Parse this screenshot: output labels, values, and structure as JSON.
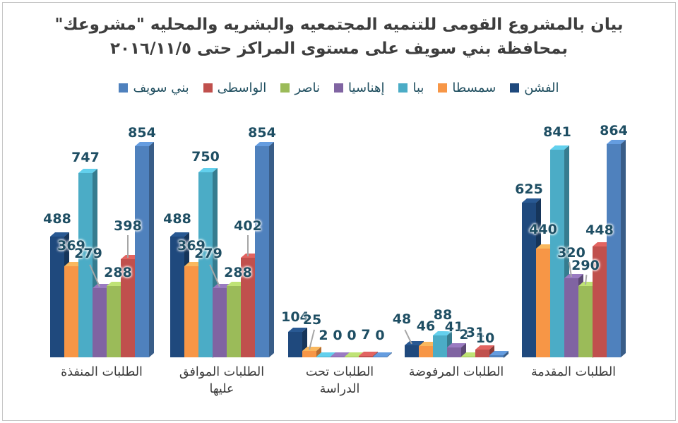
{
  "title": {
    "line1": "بيان بالمشروع القومى للتنميه المجتمعيه والبشريه والمحليه  \"مشروعك\"",
    "line2": "بمحافظة بني سويف على مستوى المراكز حتى ٢٠١٦/١١/٥"
  },
  "colors": {
    "title_text": "#3d3d3d",
    "legend_text": "#1f4e5f",
    "data_label_text": "#1e4e63",
    "category_text": "#3a3a3a",
    "leader_line": "#a6a6a6",
    "frame_border": "#c6c6c6",
    "background": "#ffffff"
  },
  "chart_data": {
    "type": "bar",
    "effect": "3d-clustered-column",
    "title": "بيان بالمشروع القومى للتنميه المجتمعيه والبشريه والمحليه \"مشروعك\" بمحافظة بني سويف على مستوى المراكز حتى ٢٠١٦/١١/٥",
    "categories": [
      "الطلبات المنفذة",
      "الطلبات الموافق عليها",
      "الطلبات تحت الدراسة",
      "الطلبات المرفوضة",
      "الطلبات المقدمة"
    ],
    "series": [
      {
        "name": "الفشن",
        "color": "#1F497D",
        "values": [
          488,
          488,
          104,
          48,
          625
        ]
      },
      {
        "name": "سمسطا",
        "color": "#F79646",
        "values": [
          369,
          369,
          25,
          46,
          440
        ]
      },
      {
        "name": "ببا",
        "color": "#4BACC6",
        "values": [
          747,
          750,
          2,
          88,
          841
        ]
      },
      {
        "name": "إهناسيا",
        "color": "#8064A2",
        "values": [
          279,
          279,
          0,
          41,
          320
        ]
      },
      {
        "name": "ناصر",
        "color": "#9BBB59",
        "values": [
          288,
          288,
          0,
          2,
          290
        ]
      },
      {
        "name": "الواسطى",
        "color": "#C0504D",
        "values": [
          398,
          402,
          7,
          31,
          448
        ]
      },
      {
        "name": "بني سويف",
        "color": "#4F81BD",
        "values": [
          854,
          854,
          0,
          10,
          864
        ]
      }
    ],
    "ylim": [
      0,
      900
    ],
    "grid": false,
    "y_axis_visible": false,
    "data_labels": true,
    "legend_position": "top",
    "legend_direction": "rtl",
    "label_layout_hints": [
      [
        [
          0,
          6,
          null
        ],
        [
          0,
          10,
          null
        ],
        [
          0,
          3,
          null
        ],
        [
          -16,
          30,
          -24
        ],
        [
          6,
          0,
          null
        ],
        [
          0,
          28,
          0
        ],
        [
          0,
          0,
          null
        ]
      ],
      [
        [
          0,
          6,
          null
        ],
        [
          0,
          10,
          null
        ],
        [
          0,
          3,
          null
        ],
        [
          -16,
          30,
          -24
        ],
        [
          6,
          0,
          null
        ],
        [
          0,
          26,
          0
        ],
        [
          0,
          0,
          null
        ]
      ],
      [
        [
          0,
          2,
          null
        ],
        [
          4,
          25,
          14
        ],
        [
          0,
          11,
          null
        ],
        [
          0,
          11,
          null
        ],
        [
          0,
          11,
          null
        ],
        [
          0,
          11,
          null
        ],
        [
          0,
          11,
          null
        ]
      ],
      [
        [
          -14,
          18,
          -26
        ],
        [
          0,
          9,
          null
        ],
        [
          4,
          10,
          null
        ],
        [
          0,
          10,
          null
        ],
        [
          -6,
          12,
          null
        ],
        [
          -10,
          5,
          null
        ],
        [
          -16,
          5,
          null
        ]
      ],
      [
        [
          0,
          0,
          null
        ],
        [
          0,
          8,
          null
        ],
        [
          0,
          6,
          null
        ],
        [
          0,
          17,
          -8
        ],
        [
          0,
          10,
          6
        ],
        [
          0,
          4,
          null
        ],
        [
          0,
          0,
          null
        ]
      ]
    ]
  }
}
